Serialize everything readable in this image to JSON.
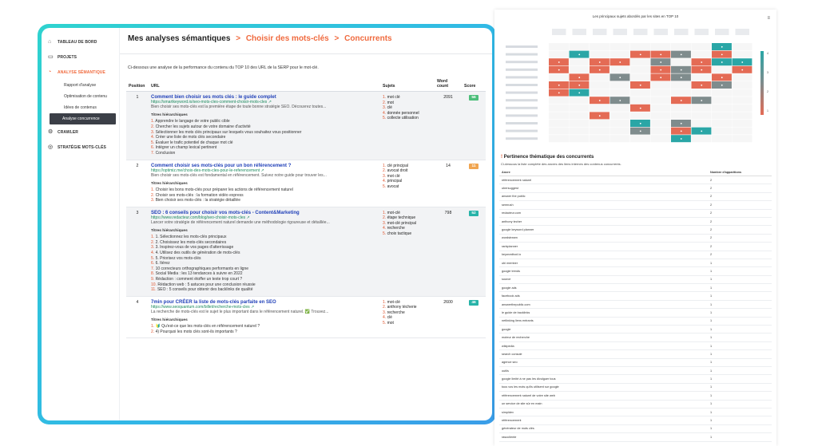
{
  "sidebar": {
    "items": [
      {
        "label": "TABLEAU DE BORD",
        "icon": "home-icon"
      },
      {
        "label": "PROJETS",
        "icon": "folder-icon"
      },
      {
        "label": "ANALYSE SÉMANTIQUE",
        "icon": "chart-icon"
      }
    ],
    "subitems": [
      "Rapport d'analyse",
      "Optimisation de contenu",
      "Idées de contenus",
      "Analyse concurrence"
    ],
    "after": [
      {
        "label": "CRAWLER",
        "icon": "crawler-icon"
      },
      {
        "label": "STRATÉGIE MOTS-CLÉS",
        "icon": "strategy-icon"
      }
    ]
  },
  "breadcrumb": {
    "c1": "Mes analyses sémantiques",
    "c2": "Choisir des mots-clés",
    "c3": "Concurrents",
    "sep": ">"
  },
  "intro": "Ci-dessous une analyse de la performance du contenu du TOP 10 des URL de la SERP pour le mot-clé.",
  "table": {
    "headers": {
      "position": "Position",
      "url": "URL",
      "topics": "Sujets",
      "wordcount": "Word count",
      "score": "Score"
    },
    "htitle_label": "Titres hiérarchiques",
    "rows": [
      {
        "position": "1",
        "title": "Comment bien choisir ses mots clés : le guide complet",
        "url": "https://smartkeyword.io/seo-mots-cles-comment-choisir-mots-cles",
        "desc": "Bien choisir ses mots-clés est la première étape de toute bonne stratégie SEO. Découvrez toutes...",
        "headings": [
          "Apprendre le langage de votre public cible",
          "Chercher les sujets autour de votre domaine d'activité",
          "Sélectionner les mots clés principaux sur lesquels vous souhaitez vous positionner",
          "Créer une liste de mots clés secondaire",
          "Évaluer le trafic potentiel de chaque mot clé",
          "Intégrer un champ lexical pertinent",
          "Conclusion"
        ],
        "topics": [
          "mot clé",
          "mot",
          "clé",
          "donnée personnel",
          "collecte utilisation"
        ],
        "wordcount": "2091",
        "score": "56",
        "score_color": "#4cbe7a"
      },
      {
        "position": "2",
        "title": "Comment choisir ses mots-clés pour un bon référencement ?",
        "url": "https://optimiz.me/choix-des-mots-cles-pour-le-referencement",
        "desc": "Bien choisir ses mots-clés est fondamental en référencement. Suivez notre guide pour trouver les...",
        "headings": [
          "Choisir les bons mots-clés pour préparer les actions de référencement naturel",
          "Choisir ses mots-clés : la formation vidéo express",
          "Bien choisir ses mots-clés : la stratégie détaillée"
        ],
        "topics": [
          "clé principal",
          "avocat droit",
          "mot clé",
          "principal",
          "avocat"
        ],
        "wordcount": "14",
        "score": "11",
        "score_color": "#f0a550"
      },
      {
        "position": "3",
        "title": "SEO : 6 conseils pour choisir vos mots-clés - Content&Marketing",
        "url": "https://www.redacteur.com/blog/seo-choisir-mots-cles",
        "desc": "Lancer votre stratégie de référencement naturel demande une méthodologie rigoureuse et détaillée...",
        "headings": [
          "1. Sélectionnez les mots-clés principaux",
          "2. Choisissez les mots-clés secondaires",
          "3. Inspirez-vous de vos pages d'atterrissage",
          "4. Utilisez des outils de génération de mots-clés",
          "5. Priorisez vos mots-clés",
          "6. Itérez",
          "10 correcteurs orthographiques performants en ligne",
          "Social Media : les 13 tendances à suivre en 2022",
          "Rédaction : comment étoffer un texte trop court ?",
          "Rédaction web : 5 astuces pour une conclusion réussie",
          "SEO : 5 conseils pour obtenir des backlinks de qualité"
        ],
        "topics": [
          "mot-clé",
          "étape technique",
          "mot-clé principal",
          "recherche",
          "choix tactique"
        ],
        "wordcount": "798",
        "score": "52",
        "score_color": "#27b3a8"
      },
      {
        "position": "4",
        "title": "7min pour CRÉER la liste de mots-clés parfaite en SEO",
        "url": "https://www.seoquantum.com/billet/recherche-mots-cles",
        "desc": "La recherche de mots-clés est le sujet le plus important dans le référencement naturel. ✅ Trouvez...",
        "headings": [
          "🔰 Qu'est-ce que les mots-clés en référencement naturel ?",
          "4) Pourquoi les mots clés sont-ils importants ?"
        ],
        "topics": [
          "mot-clé",
          "anthony técherie",
          "recherche",
          "clé",
          "mot"
        ],
        "wordcount": "2600",
        "score": "46",
        "score_color": "#27b3a8"
      }
    ]
  },
  "heatmap": {
    "title": "Les principaux sujets abordés par les sites en TOP 10",
    "menu_icon": "hamburger-icon",
    "rows": 13,
    "cols": 10,
    "legend_ticks": [
      "4",
      "3",
      "2",
      "1"
    ],
    "colors": {
      "high": "#e46b55",
      "mid": "#7f8c8d",
      "low": "#2aa6a6",
      "empty": "#f6f6f6"
    },
    "values": [
      [
        0,
        0,
        0,
        0,
        0,
        0,
        0,
        0,
        1,
        0
      ],
      [
        0,
        1,
        0,
        0,
        3,
        4,
        2,
        0,
        3,
        0
      ],
      [
        4,
        0,
        4,
        3,
        0,
        2,
        0,
        4,
        1,
        1
      ],
      [
        4,
        0,
        3,
        0,
        0,
        3,
        2,
        3,
        0,
        3
      ],
      [
        0,
        3,
        0,
        2,
        0,
        4,
        2,
        0,
        4,
        0
      ],
      [
        3,
        4,
        0,
        0,
        4,
        0,
        0,
        3,
        2,
        0
      ],
      [
        3,
        1,
        0,
        0,
        0,
        0,
        0,
        0,
        0,
        0
      ],
      [
        0,
        0,
        4,
        2,
        0,
        0,
        3,
        2,
        0,
        0
      ],
      [
        0,
        0,
        0,
        0,
        4,
        0,
        0,
        0,
        0,
        0
      ],
      [
        0,
        0,
        4,
        0,
        0,
        0,
        0,
        0,
        0,
        0
      ],
      [
        0,
        0,
        0,
        0,
        1,
        0,
        2,
        0,
        0,
        0
      ],
      [
        0,
        0,
        0,
        0,
        2,
        0,
        3,
        1,
        0,
        0
      ],
      [
        0,
        0,
        0,
        0,
        0,
        0,
        1,
        0,
        0,
        0
      ]
    ]
  },
  "competitors": {
    "title": "Pertinence thématique des concurrents",
    "intro": "Ci-dessous la liste complète des ancres des liens internes des contenus concurrents.",
    "headers": {
      "anchor": "Ancre",
      "count": "Nombre d'apparitions"
    },
    "rows": [
      [
        "référencement naturel",
        "2"
      ],
      [
        "ubersuggest",
        "2"
      ],
      [
        "answer the public",
        "2"
      ],
      [
        "semrush",
        "2"
      ],
      [
        "redacteur.com",
        "2"
      ],
      [
        "anthony techer",
        "2"
      ],
      [
        "google keyword planner",
        "2"
      ],
      [
        "wordstream",
        "2"
      ],
      [
        "rankplanner",
        "2"
      ],
      [
        "keywordtool.io",
        "2"
      ],
      [
        "ubi member",
        "1"
      ],
      [
        "google trends",
        "1"
      ],
      [
        "source",
        "1"
      ],
      [
        "google ads",
        "1"
      ],
      [
        "facebook ads",
        "1"
      ],
      [
        "answerthepublic.com",
        "1"
      ],
      [
        "le guide de backlinks",
        "1"
      ],
      [
        "netlinking liens entrants",
        "1"
      ],
      [
        "google",
        "1"
      ],
      [
        "moteur de recherche",
        "1"
      ],
      [
        "wikipedia",
        "1"
      ],
      [
        "search console",
        "1"
      ],
      [
        "agence seo",
        "1"
      ],
      [
        "outils",
        "1"
      ],
      [
        "google limité à ne pas les divulguer tous",
        "1"
      ],
      [
        "tous vos les mots qu'ils utilisent sur google",
        "1"
      ],
      [
        "référencement naturel de votre site web",
        "1"
      ],
      [
        "un service de site sûr en main",
        "1"
      ],
      [
        "simpldev",
        "1"
      ],
      [
        "référencement",
        "1"
      ],
      [
        "générateur de mots clés",
        "1"
      ],
      [
        "rasocliente",
        "1"
      ]
    ]
  }
}
